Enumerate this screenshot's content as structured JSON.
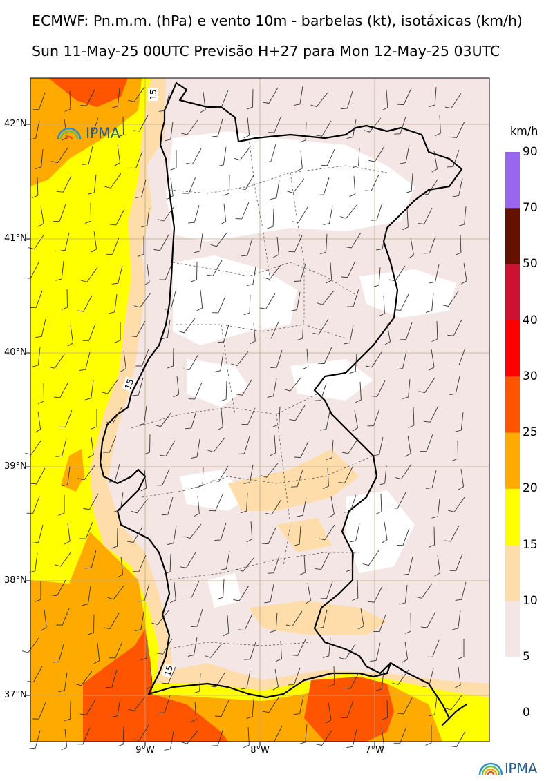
{
  "header": {
    "title_line1": "ECMWF: Pn.m.m. (hPa) e vento 10m - barbelas (kt), isotáxicas (km/h)",
    "title_line2": "Sun 11-May-25 00UTC Previsão H+27 para Mon 12-May-25 03UTC"
  },
  "axes": {
    "lat_labels": [
      "42°N",
      "41°N",
      "40°N",
      "39°N",
      "38°N",
      "37°N"
    ],
    "lon_labels": [
      "9°W",
      "8°W",
      "7°W"
    ]
  },
  "colorbar": {
    "unit": "km/h",
    "levels": [
      "90",
      "70",
      "50",
      "40",
      "30",
      "25",
      "20",
      "15",
      "10",
      "5",
      "0"
    ],
    "colors": [
      "#9966ee",
      "#661100",
      "#cc1133",
      "#ff0000",
      "#ff5500",
      "#ffaa00",
      "#ffff00",
      "#ffddaa",
      "#f5e6e6",
      "#ffffff"
    ]
  },
  "contour_labels": [
    "15",
    "15",
    "15"
  ],
  "logos": {
    "top": "IPMA",
    "bottom": "IPMA"
  },
  "map_colors": {
    "very_light": "#f5e6e6",
    "peach": "#ffddaa",
    "yellow": "#ffff00",
    "orange": "#ffaa00",
    "dark_orange": "#ff5500",
    "coast": "#000000",
    "grid": "#b0a080"
  }
}
